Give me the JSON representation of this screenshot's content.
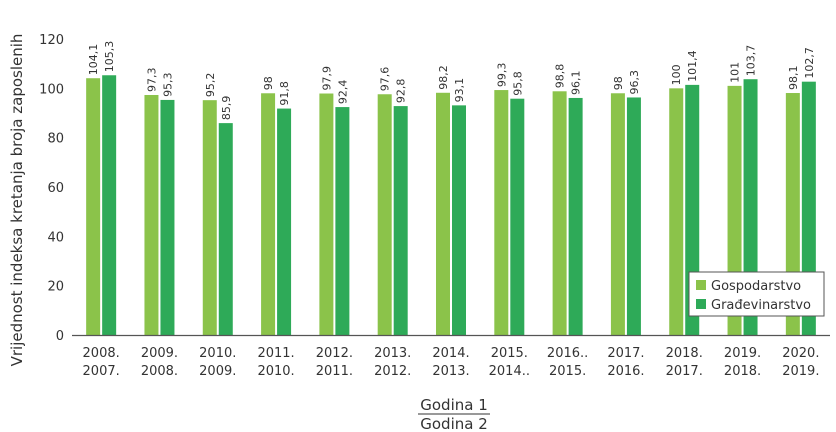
{
  "chart_data": {
    "type": "bar",
    "categories": [
      [
        "2008.",
        "2007."
      ],
      [
        "2009.",
        "2008."
      ],
      [
        "2010.",
        "2009."
      ],
      [
        "2011.",
        "2010."
      ],
      [
        "2012.",
        "2011."
      ],
      [
        "2013.",
        "2012."
      ],
      [
        "2014.",
        "2013."
      ],
      [
        "2015.",
        "2014.."
      ],
      [
        "2016..",
        "2015."
      ],
      [
        "2017.",
        "2016."
      ],
      [
        "2018.",
        "2017."
      ],
      [
        "2019.",
        "2018."
      ],
      [
        "2020.",
        "2019."
      ]
    ],
    "series": [
      {
        "name": "Gospodarstvo",
        "color": "#8bc34a",
        "values": [
          104.1,
          97.3,
          95.2,
          98,
          97.9,
          97.6,
          98.2,
          99.3,
          98.8,
          98,
          100,
          101,
          98.1
        ],
        "labels": [
          "104,1",
          "97,3",
          "95,2",
          "98",
          "97,9",
          "97,6",
          "98,2",
          "99,3",
          "98,8",
          "98",
          "100",
          "101",
          "98,1"
        ]
      },
      {
        "name": "Građevinarstvo",
        "color": "#2eaa58",
        "values": [
          105.3,
          95.3,
          85.9,
          91.8,
          92.4,
          92.8,
          93.1,
          95.8,
          96.1,
          96.3,
          101.4,
          103.7,
          102.7
        ],
        "labels": [
          "105,3",
          "95,3",
          "85,9",
          "91,8",
          "92,4",
          "92,8",
          "93,1",
          "95,8",
          "96,1",
          "96,3",
          "101,4",
          "103,7",
          "102,7"
        ]
      }
    ],
    "ylabel": "Vrijednost indeksa kretanja broja zaposlenih",
    "xlabel_top": "Godina 1",
    "xlabel_bottom": "Godina 2",
    "ylim": [
      0,
      120
    ],
    "yticks": [
      0,
      20,
      40,
      60,
      80,
      100,
      120
    ],
    "grid": false,
    "legend_position": "bottom-right"
  }
}
